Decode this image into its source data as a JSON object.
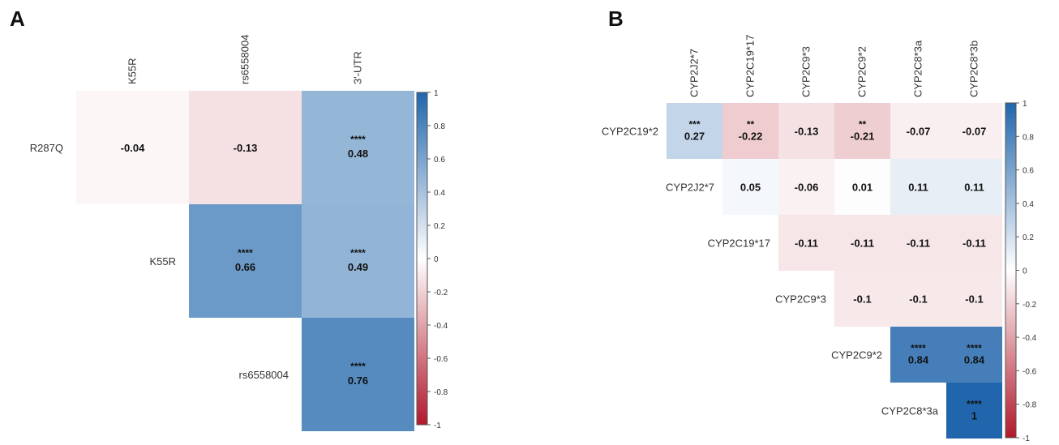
{
  "colors": {
    "negative": "#B2182B",
    "neutral": "#FFFFFF",
    "positive": "#2166AC"
  },
  "chart_data": [
    {
      "type": "heatmap",
      "panel_label": "A",
      "columns": [
        "K55R",
        "rs6558004",
        "3'-UTR"
      ],
      "rows": [
        "R287Q",
        "K55R",
        "rs6558004"
      ],
      "cells": [
        {
          "row": 0,
          "col": 0,
          "value": -0.04,
          "label": "-0.04",
          "stars": ""
        },
        {
          "row": 0,
          "col": 1,
          "value": -0.13,
          "label": "-0.13",
          "stars": ""
        },
        {
          "row": 0,
          "col": 2,
          "value": 0.48,
          "label": "0.48",
          "stars": "****"
        },
        {
          "row": 1,
          "col": 1,
          "value": 0.66,
          "label": "0.66",
          "stars": "****"
        },
        {
          "row": 1,
          "col": 2,
          "value": 0.49,
          "label": "0.49",
          "stars": "****"
        },
        {
          "row": 2,
          "col": 2,
          "value": 0.76,
          "label": "0.76",
          "stars": "****"
        }
      ],
      "color_scale": {
        "min": -1,
        "max": 1,
        "ticks": [
          "1",
          "0.8",
          "0.6",
          "0.4",
          "0.2",
          "0",
          "-0.2",
          "-0.4",
          "-0.6",
          "-0.8",
          "-1"
        ]
      }
    },
    {
      "type": "heatmap",
      "panel_label": "B",
      "columns": [
        "CYP2J2*7",
        "CYP2C19*17",
        "CYP2C9*3",
        "CYP2C9*2",
        "CYP2C8*3a",
        "CYP2C8*3b"
      ],
      "rows": [
        "CYP2C19*2",
        "CYP2J2*7",
        "CYP2C19*17",
        "CYP2C9*3",
        "CYP2C9*2",
        "CYP2C8*3a"
      ],
      "cells": [
        {
          "row": 0,
          "col": 0,
          "value": 0.27,
          "label": "0.27",
          "stars": "***"
        },
        {
          "row": 0,
          "col": 1,
          "value": -0.22,
          "label": "-0.22",
          "stars": "**"
        },
        {
          "row": 0,
          "col": 2,
          "value": -0.13,
          "label": "-0.13",
          "stars": ""
        },
        {
          "row": 0,
          "col": 3,
          "value": -0.21,
          "label": "-0.21",
          "stars": "**"
        },
        {
          "row": 0,
          "col": 4,
          "value": -0.07,
          "label": "-0.07",
          "stars": ""
        },
        {
          "row": 0,
          "col": 5,
          "value": -0.07,
          "label": "-0.07",
          "stars": ""
        },
        {
          "row": 1,
          "col": 1,
          "value": 0.05,
          "label": "0.05",
          "stars": ""
        },
        {
          "row": 1,
          "col": 2,
          "value": -0.06,
          "label": "-0.06",
          "stars": ""
        },
        {
          "row": 1,
          "col": 3,
          "value": 0.01,
          "label": "0.01",
          "stars": ""
        },
        {
          "row": 1,
          "col": 4,
          "value": 0.11,
          "label": "0.11",
          "stars": ""
        },
        {
          "row": 1,
          "col": 5,
          "value": 0.11,
          "label": "0.11",
          "stars": ""
        },
        {
          "row": 2,
          "col": 2,
          "value": -0.11,
          "label": "-0.11",
          "stars": ""
        },
        {
          "row": 2,
          "col": 3,
          "value": -0.11,
          "label": "-0.11",
          "stars": ""
        },
        {
          "row": 2,
          "col": 4,
          "value": -0.11,
          "label": "-0.11",
          "stars": ""
        },
        {
          "row": 2,
          "col": 5,
          "value": -0.11,
          "label": "-0.11",
          "stars": ""
        },
        {
          "row": 3,
          "col": 3,
          "value": -0.1,
          "label": "-0.1",
          "stars": ""
        },
        {
          "row": 3,
          "col": 4,
          "value": -0.1,
          "label": "-0.1",
          "stars": ""
        },
        {
          "row": 3,
          "col": 5,
          "value": -0.1,
          "label": "-0.1",
          "stars": ""
        },
        {
          "row": 4,
          "col": 4,
          "value": 0.84,
          "label": "0.84",
          "stars": "****"
        },
        {
          "row": 4,
          "col": 5,
          "value": 0.84,
          "label": "0.84",
          "stars": "****"
        },
        {
          "row": 5,
          "col": 5,
          "value": 1,
          "label": "1",
          "stars": "****"
        }
      ],
      "color_scale": {
        "min": -1,
        "max": 1,
        "ticks": [
          "1",
          "0.8",
          "0.6",
          "0.4",
          "0.2",
          "0",
          "-0.2",
          "-0.4",
          "-0.6",
          "-0.8",
          "-1"
        ]
      }
    }
  ]
}
